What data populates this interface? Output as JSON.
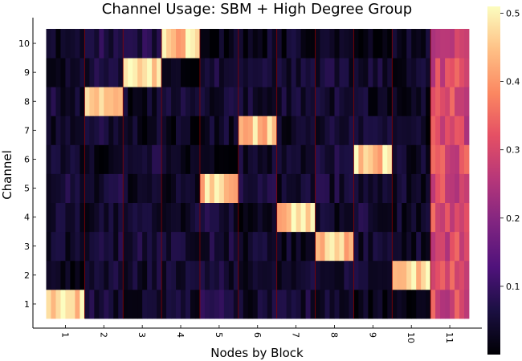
{
  "chart_data": {
    "type": "heatmap",
    "title": "Channel Usage: SBM + High Degree Group",
    "xlabel": "Nodes by Block",
    "ylabel": "Channel",
    "x_categories": [
      "1",
      "2",
      "3",
      "4",
      "5",
      "6",
      "7",
      "8",
      "9",
      "10",
      "11"
    ],
    "y_categories": [
      "1",
      "2",
      "3",
      "4",
      "5",
      "6",
      "7",
      "8",
      "9",
      "10"
    ],
    "block_channel_mean": [
      [
        0.46,
        0.02,
        0.04,
        0.04,
        0.05,
        0.04,
        0.04,
        0.05,
        0.03,
        0.04
      ],
      [
        0.05,
        0.04,
        0.05,
        0.04,
        0.05,
        0.02,
        0.05,
        0.46,
        0.05,
        0.07
      ],
      [
        0.04,
        0.04,
        0.05,
        0.05,
        0.04,
        0.05,
        0.03,
        0.03,
        0.46,
        0.07
      ],
      [
        0.04,
        0.04,
        0.05,
        0.04,
        0.04,
        0.03,
        0.02,
        0.04,
        0.02,
        0.46
      ],
      [
        0.06,
        0.05,
        0.05,
        0.05,
        0.46,
        0.02,
        0.04,
        0.05,
        0.06,
        0.02
      ],
      [
        0.04,
        0.04,
        0.04,
        0.02,
        0.05,
        0.04,
        0.46,
        0.04,
        0.04,
        0.03
      ],
      [
        0.05,
        0.05,
        0.04,
        0.46,
        0.04,
        0.05,
        0.03,
        0.05,
        0.04,
        0.03
      ],
      [
        0.04,
        0.04,
        0.46,
        0.03,
        0.05,
        0.05,
        0.04,
        0.04,
        0.05,
        0.04
      ],
      [
        0.02,
        0.04,
        0.04,
        0.05,
        0.04,
        0.46,
        0.04,
        0.04,
        0.05,
        0.02
      ],
      [
        0.02,
        0.46,
        0.04,
        0.04,
        0.04,
        0.04,
        0.03,
        0.04,
        0.04,
        0.04
      ],
      [
        0.3,
        0.3,
        0.3,
        0.3,
        0.3,
        0.3,
        0.3,
        0.3,
        0.3,
        0.3
      ]
    ],
    "colorbar": {
      "colormap": "magma",
      "range": [
        0,
        0.51
      ],
      "ticks": [
        0.1,
        0.2,
        0.3,
        0.4,
        0.5
      ],
      "tick_labels": [
        "0.1",
        "0.2",
        "0.3",
        "0.4",
        "0.5"
      ]
    },
    "block_separator_color": "#8b0000",
    "grid": true
  }
}
